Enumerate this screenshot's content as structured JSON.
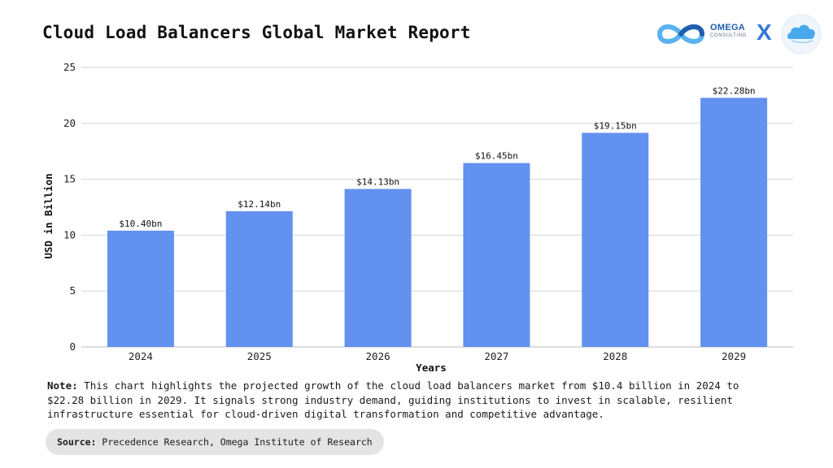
{
  "header": {
    "title": "Cloud Load Balancers Global Market Report",
    "logo_name": "OMEGA",
    "logo_sub": "CONSULTING",
    "logo_separator": "X"
  },
  "colors": {
    "bar": "#6391f0",
    "grid": "#d6d6d6",
    "omega_blue": "#1f5fae",
    "omega_light": "#5ab2f0",
    "cloud": "#47a9ec"
  },
  "icons": {
    "omega_logo": "infinity-icon",
    "partner_logo": "cloud-icon"
  },
  "chart_data": {
    "type": "bar",
    "categories": [
      "2024",
      "2025",
      "2026",
      "2027",
      "2028",
      "2029"
    ],
    "values": [
      10.4,
      12.14,
      14.13,
      16.45,
      19.15,
      22.28
    ],
    "data_labels": [
      "$10.40bn",
      "$12.14bn",
      "$14.13bn",
      "$16.45bn",
      "$19.15bn",
      "$22.28bn"
    ],
    "yticks": [
      0,
      5,
      10,
      15,
      20,
      25
    ],
    "ylim": [
      0,
      25
    ],
    "xlabel": "Years",
    "ylabel": "USD in Billion",
    "grid": true,
    "legend": "none"
  },
  "note": {
    "label": "Note:",
    "text": " This chart highlights the projected growth of the cloud load balancers market from $10.4 billion in 2024 to $22.28 billion in 2029. It signals strong industry demand, guiding institutions to invest in scalable, resilient infrastructure essential for cloud-driven digital transformation and competitive advantage."
  },
  "source": {
    "label": "Source:",
    "text": " Precedence Research, Omega Institute of Research"
  }
}
